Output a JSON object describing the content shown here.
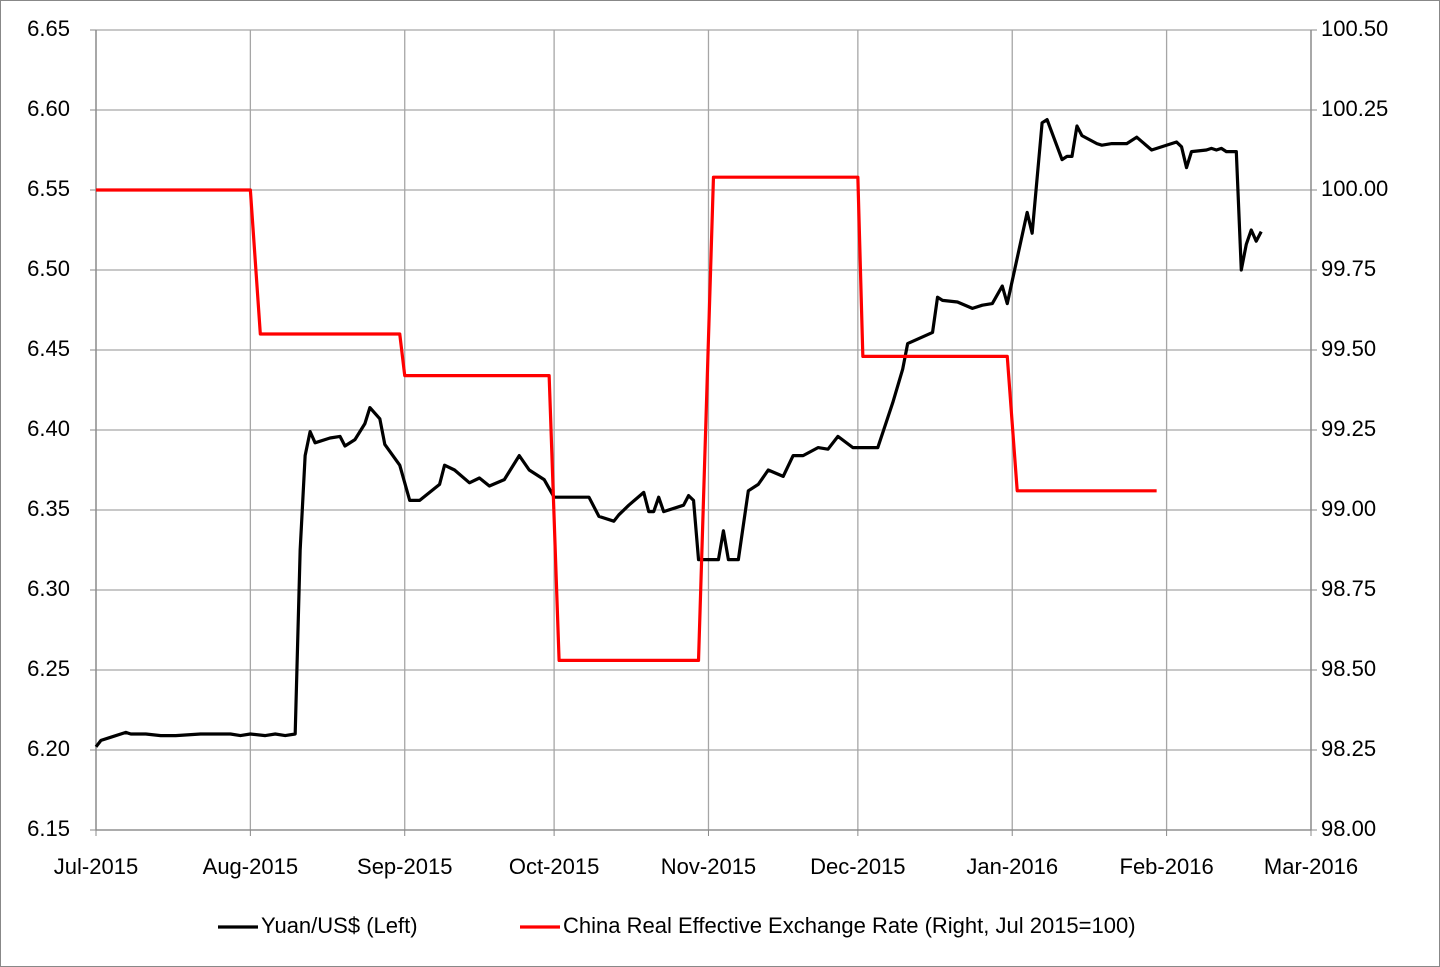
{
  "chart_data": {
    "type": "line",
    "xlim": [
      0,
      244
    ],
    "xticks": [
      {
        "value": 0,
        "label": "Jul-2015"
      },
      {
        "value": 31,
        "label": "Aug-2015"
      },
      {
        "value": 62,
        "label": "Sep-2015"
      },
      {
        "value": 92,
        "label": "Oct-2015"
      },
      {
        "value": 123,
        "label": "Nov-2015"
      },
      {
        "value": 153,
        "label": "Dec-2015"
      },
      {
        "value": 184,
        "label": "Jan-2016"
      },
      {
        "value": 215,
        "label": "Feb-2016"
      },
      {
        "value": 244,
        "label": "Mar-2016"
      }
    ],
    "ylim": [
      6.15,
      6.65
    ],
    "yticks": [
      6.15,
      {
        "value": 6.2,
        "label": "6.20"
      },
      6.25,
      {
        "value": 6.3,
        "label": "6.30"
      },
      6.35,
      {
        "value": 6.4,
        "label": "6.40"
      },
      6.45,
      {
        "value": 6.5,
        "label": "6.50"
      },
      6.55,
      {
        "value": 6.6,
        "label": "6.60"
      },
      6.65
    ],
    "y2lim": [
      98,
      100.5
    ],
    "y2ticks": [
      {
        "value": 98,
        "label": "98.00"
      },
      98.25,
      {
        "value": 98.5,
        "label": "98.50"
      },
      98.75,
      {
        "value": 99,
        "label": "99.00"
      },
      99.25,
      {
        "value": 99.5,
        "label": "99.50"
      },
      99.75,
      {
        "value": 100,
        "label": "100.00"
      },
      100.25,
      {
        "value": 100.5,
        "label": "100.50"
      }
    ],
    "grid": true,
    "legend": "bottom",
    "series": [
      {
        "name": "Yuan/US$ (Left)",
        "color": "#000000",
        "axis": "y",
        "x": [
          0,
          1,
          3,
          6,
          7,
          10,
          13,
          16,
          21,
          27,
          29,
          31,
          34,
          36,
          38,
          40,
          41,
          42,
          43,
          44,
          47,
          49,
          50,
          52,
          54,
          55,
          57,
          58,
          61,
          63,
          65,
          69,
          70,
          72,
          75,
          77,
          79,
          82,
          85,
          87,
          90,
          92,
          99,
          101,
          104,
          105,
          107,
          110,
          111,
          112,
          113,
          114,
          117,
          118,
          119,
          120,
          121,
          125,
          126,
          127,
          129,
          131,
          133,
          135,
          138,
          140,
          142,
          145,
          147,
          149,
          152,
          157,
          160,
          162,
          163,
          168,
          169,
          170,
          173,
          176,
          178,
          180,
          182,
          183,
          187,
          188,
          190,
          191,
          194,
          195,
          196,
          197,
          198,
          201,
          202,
          204,
          207,
          209,
          212,
          217,
          218,
          219,
          220,
          223,
          224,
          225,
          226,
          227,
          229,
          230,
          231,
          232,
          233,
          234
        ],
        "values": [
          6.202,
          6.206,
          6.208,
          6.211,
          6.21,
          6.21,
          6.209,
          6.209,
          6.21,
          6.21,
          6.209,
          6.21,
          6.209,
          6.21,
          6.209,
          6.21,
          6.325,
          6.384,
          6.399,
          6.392,
          6.395,
          6.396,
          6.39,
          6.394,
          6.404,
          6.414,
          6.407,
          6.391,
          6.378,
          6.356,
          6.356,
          6.366,
          6.378,
          6.375,
          6.367,
          6.37,
          6.365,
          6.369,
          6.384,
          6.375,
          6.369,
          6.358,
          6.358,
          6.346,
          6.343,
          6.347,
          6.353,
          6.361,
          6.349,
          6.349,
          6.358,
          6.349,
          6.352,
          6.353,
          6.359,
          6.356,
          6.319,
          6.319,
          6.337,
          6.319,
          6.319,
          6.362,
          6.366,
          6.375,
          6.371,
          6.384,
          6.384,
          6.389,
          6.388,
          6.396,
          6.389,
          6.389,
          6.417,
          6.438,
          6.454,
          6.461,
          6.483,
          6.481,
          6.48,
          6.476,
          6.478,
          6.479,
          6.49,
          6.479,
          6.536,
          6.523,
          6.592,
          6.594,
          6.569,
          6.571,
          6.571,
          6.59,
          6.584,
          6.579,
          6.578,
          6.579,
          6.579,
          6.583,
          6.575,
          6.58,
          6.577,
          6.564,
          6.574,
          6.575,
          6.576,
          6.575,
          6.576,
          6.574,
          6.574,
          6.5,
          6.516,
          6.525,
          6.518,
          6.524
        ]
      },
      {
        "name": "China Real Effective Exchange Rate (Right, Jul 2015=100)",
        "color": "#ff0000",
        "axis": "y2",
        "x": [
          0,
          31,
          33,
          61,
          62,
          91,
          93,
          121,
          124,
          153,
          154,
          183,
          185,
          213
        ],
        "values": [
          100.0,
          100.0,
          99.55,
          99.55,
          99.42,
          99.42,
          98.53,
          98.53,
          100.04,
          100.04,
          99.48,
          99.48,
          99.06,
          99.06
        ]
      }
    ]
  }
}
